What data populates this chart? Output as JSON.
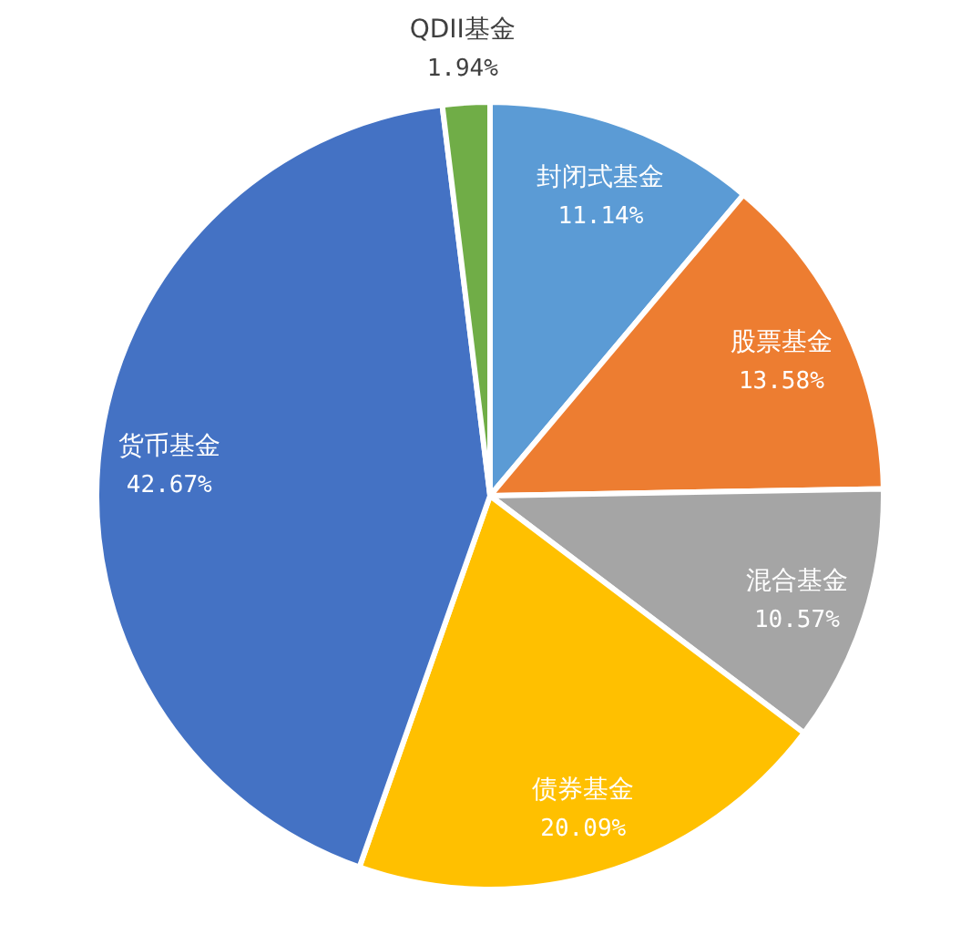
{
  "chart_data": {
    "type": "pie",
    "categories": [
      "封闭式基金",
      "股票基金",
      "混合基金",
      "债券基金",
      "货币基金",
      "QDII基金"
    ],
    "values": [
      11.14,
      13.58,
      10.57,
      20.09,
      42.67,
      1.94
    ],
    "value_labels": [
      "11.14%",
      "13.58%",
      "10.57%",
      "20.09%",
      "42.67%",
      "1.94%"
    ],
    "colors": [
      "#5b9bd5",
      "#ed7d31",
      "#a5a5a5",
      "#ffc000",
      "#4472c4",
      "#70ad47"
    ]
  }
}
